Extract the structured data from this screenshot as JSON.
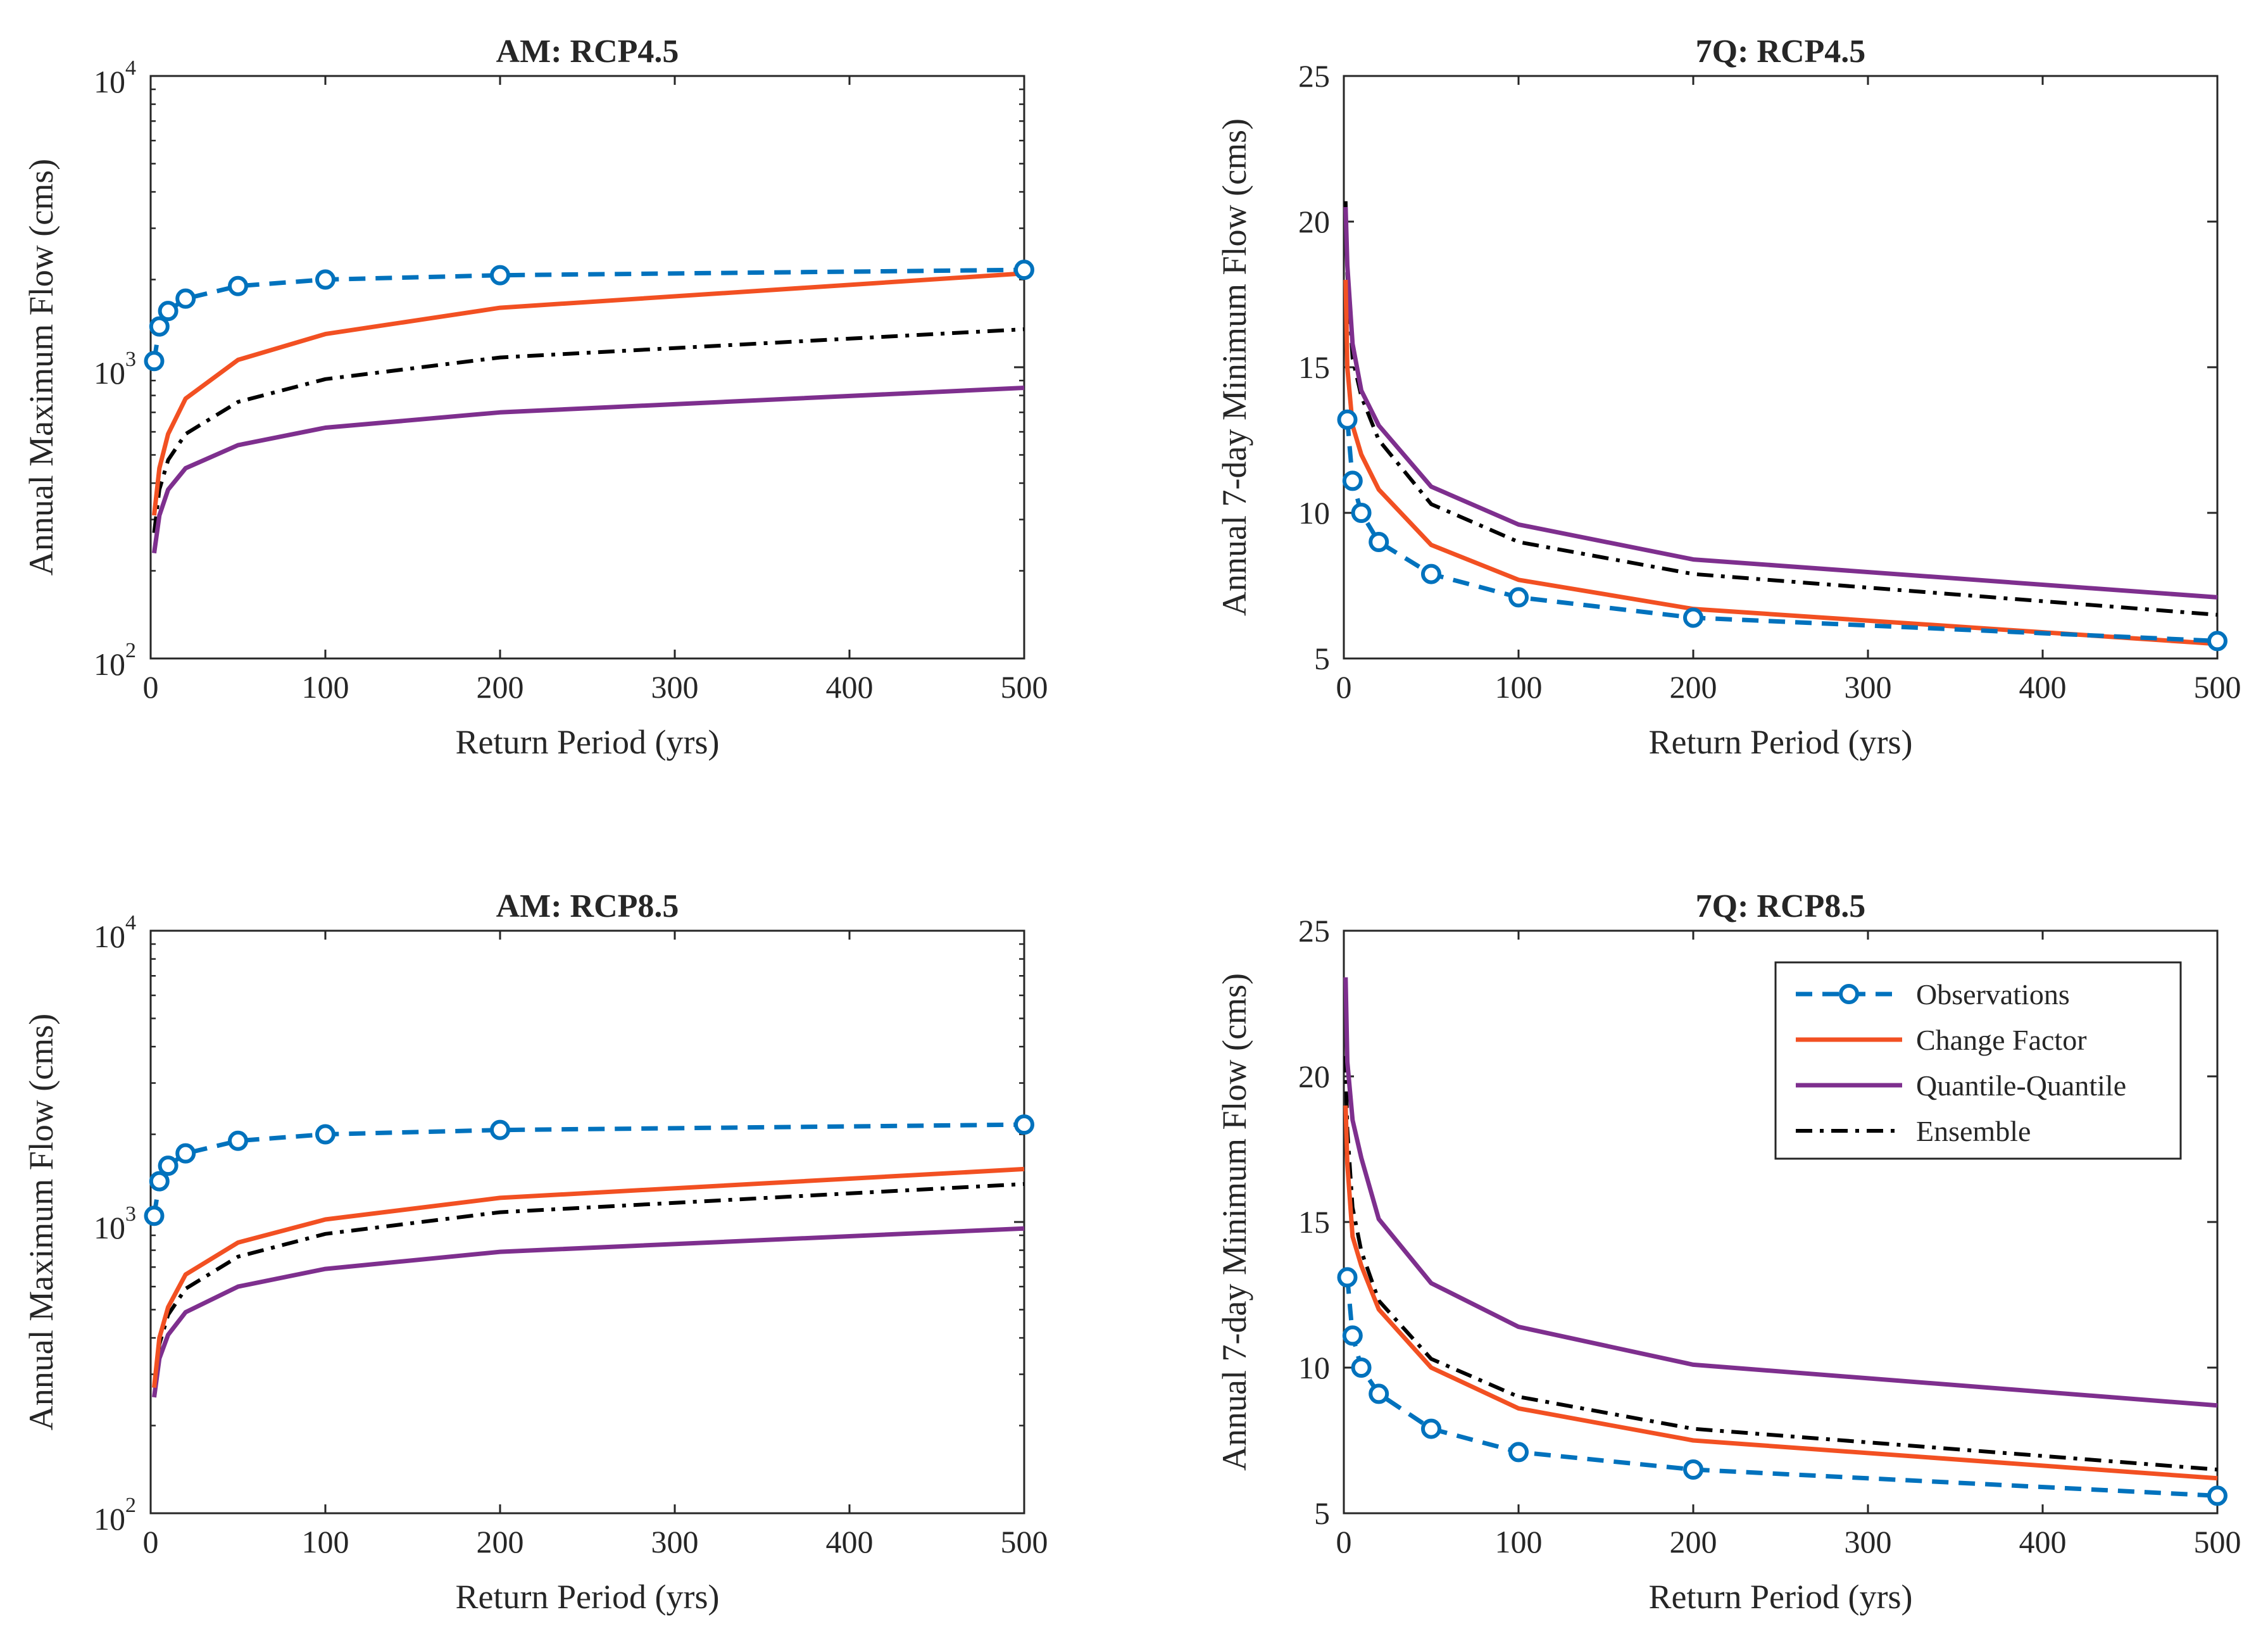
{
  "chart_data": [
    {
      "type": "line",
      "title": "AM: RCP4.5",
      "xlabel": "Return Period (yrs)",
      "ylabel": "Annual Maximum Flow (cms)",
      "xlim": [
        0,
        500
      ],
      "ylim": [
        100,
        10000
      ],
      "yscale": "log",
      "xticks": [
        "0",
        "100",
        "200",
        "300",
        "400",
        "500"
      ],
      "yticks": [
        {
          "base": "10",
          "exp": "2"
        },
        {
          "base": "10",
          "exp": "3"
        },
        {
          "base": "10",
          "exp": "4"
        }
      ],
      "series": [
        {
          "name": "Observations",
          "color": "#0072BD",
          "style": "dashed-markers",
          "x": [
            2,
            5,
            10,
            20,
            50,
            100,
            200,
            500
          ],
          "y": [
            1050,
            1380,
            1560,
            1720,
            1900,
            2000,
            2070,
            2160
          ]
        },
        {
          "name": "Change Factor",
          "color": "#F25022",
          "style": "solid",
          "x": [
            2,
            5,
            10,
            20,
            50,
            100,
            200,
            500
          ],
          "y": [
            310,
            450,
            590,
            780,
            1060,
            1300,
            1600,
            2100
          ]
        },
        {
          "name": "Quantile-Quantile",
          "color": "#7E2F8E",
          "style": "solid",
          "x": [
            2,
            5,
            10,
            20,
            50,
            100,
            200,
            500
          ],
          "y": [
            230,
            310,
            380,
            450,
            540,
            620,
            700,
            850
          ]
        },
        {
          "name": "Ensemble",
          "color": "#000000",
          "style": "dashdot",
          "x": [
            2,
            5,
            10,
            20,
            50,
            100,
            200,
            500
          ],
          "y": [
            270,
            380,
            480,
            590,
            760,
            910,
            1080,
            1350
          ]
        }
      ]
    },
    {
      "type": "line",
      "title": "7Q: RCP4.5",
      "xlabel": "Return Period (yrs)",
      "ylabel": "Annual 7-day Minimum Flow (cms)",
      "xlim": [
        0,
        500
      ],
      "ylim": [
        5,
        25
      ],
      "yscale": "linear",
      "xticks": [
        "0",
        "100",
        "200",
        "300",
        "400",
        "500"
      ],
      "yticks": [
        "5",
        "10",
        "15",
        "20",
        "25"
      ],
      "series": [
        {
          "name": "Observations",
          "color": "#0072BD",
          "style": "dashed-markers",
          "x": [
            2,
            5,
            10,
            20,
            50,
            100,
            200,
            500
          ],
          "y": [
            13.2,
            11.1,
            10.0,
            9.0,
            7.9,
            7.1,
            6.4,
            5.6
          ]
        },
        {
          "name": "Change Factor",
          "color": "#F25022",
          "style": "solid",
          "x": [
            1,
            2,
            5,
            10,
            20,
            50,
            100,
            200,
            500
          ],
          "y": [
            18.0,
            15.0,
            13.0,
            12.0,
            10.8,
            8.9,
            7.7,
            6.7,
            5.5
          ]
        },
        {
          "name": "Quantile-Quantile",
          "color": "#7E2F8E",
          "style": "solid",
          "x": [
            1,
            2,
            5,
            10,
            20,
            50,
            100,
            200,
            500
          ],
          "y": [
            20.5,
            18.5,
            15.8,
            14.2,
            13.0,
            10.9,
            9.6,
            8.4,
            7.1
          ]
        },
        {
          "name": "Ensemble",
          "color": "#000000",
          "style": "dashdot",
          "x": [
            1,
            2,
            5,
            10,
            20,
            50,
            100,
            200,
            500
          ],
          "y": [
            20.7,
            18.2,
            15.3,
            14.0,
            12.5,
            10.3,
            9.0,
            7.9,
            6.5
          ]
        }
      ]
    },
    {
      "type": "line",
      "title": "AM: RCP8.5",
      "xlabel": "Return Period (yrs)",
      "ylabel": "Annual Maximum Flow (cms)",
      "xlim": [
        0,
        500
      ],
      "ylim": [
        100,
        10000
      ],
      "yscale": "log",
      "xticks": [
        "0",
        "100",
        "200",
        "300",
        "400",
        "500"
      ],
      "yticks": [
        {
          "base": "10",
          "exp": "2"
        },
        {
          "base": "10",
          "exp": "3"
        },
        {
          "base": "10",
          "exp": "4"
        }
      ],
      "series": [
        {
          "name": "Observations",
          "color": "#0072BD",
          "style": "dashed-markers",
          "x": [
            2,
            5,
            10,
            20,
            50,
            100,
            200,
            500
          ],
          "y": [
            1050,
            1380,
            1560,
            1720,
            1900,
            2000,
            2070,
            2160
          ]
        },
        {
          "name": "Change Factor",
          "color": "#F25022",
          "style": "solid",
          "x": [
            2,
            5,
            10,
            20,
            50,
            100,
            200,
            500
          ],
          "y": [
            270,
            400,
            510,
            660,
            850,
            1020,
            1210,
            1520
          ]
        },
        {
          "name": "Quantile-Quantile",
          "color": "#7E2F8E",
          "style": "solid",
          "x": [
            2,
            5,
            10,
            20,
            50,
            100,
            200,
            500
          ],
          "y": [
            250,
            340,
            410,
            490,
            600,
            690,
            790,
            950
          ]
        },
        {
          "name": "Ensemble",
          "color": "#000000",
          "style": "dashdot",
          "x": [
            2,
            5,
            10,
            20,
            50,
            100,
            200,
            500
          ],
          "y": [
            270,
            380,
            480,
            590,
            760,
            910,
            1080,
            1350
          ]
        }
      ]
    },
    {
      "type": "line",
      "title": "7Q: RCP8.5",
      "xlabel": "Return Period (yrs)",
      "ylabel": "Annual 7-day Minimum Flow (cms)",
      "xlim": [
        0,
        500
      ],
      "ylim": [
        5,
        25
      ],
      "yscale": "linear",
      "xticks": [
        "0",
        "100",
        "200",
        "300",
        "400",
        "500"
      ],
      "yticks": [
        "5",
        "10",
        "15",
        "20",
        "25"
      ],
      "legend": {
        "placement": "top-right"
      },
      "series": [
        {
          "name": "Observations",
          "color": "#0072BD",
          "style": "dashed-markers",
          "x": [
            2,
            5,
            10,
            20,
            50,
            100,
            200,
            500
          ],
          "y": [
            13.1,
            11.1,
            10.0,
            9.1,
            7.9,
            7.1,
            6.5,
            5.6
          ]
        },
        {
          "name": "Change Factor",
          "color": "#F25022",
          "style": "solid",
          "x": [
            1,
            2,
            5,
            10,
            20,
            50,
            100,
            200,
            500
          ],
          "y": [
            19.0,
            17.0,
            14.5,
            13.5,
            12.0,
            10.0,
            8.6,
            7.5,
            6.2
          ]
        },
        {
          "name": "Quantile-Quantile",
          "color": "#7E2F8E",
          "style": "solid",
          "x": [
            1,
            2,
            5,
            10,
            20,
            50,
            100,
            200,
            500
          ],
          "y": [
            23.4,
            20.5,
            18.5,
            17.2,
            15.1,
            12.9,
            11.4,
            10.1,
            8.7
          ]
        },
        {
          "name": "Ensemble",
          "color": "#000000",
          "style": "dashdot",
          "x": [
            1,
            2,
            5,
            10,
            20,
            50,
            100,
            200,
            500
          ],
          "y": [
            20.7,
            18.2,
            15.5,
            14.0,
            12.3,
            10.3,
            9.0,
            7.9,
            6.5
          ]
        }
      ]
    }
  ]
}
